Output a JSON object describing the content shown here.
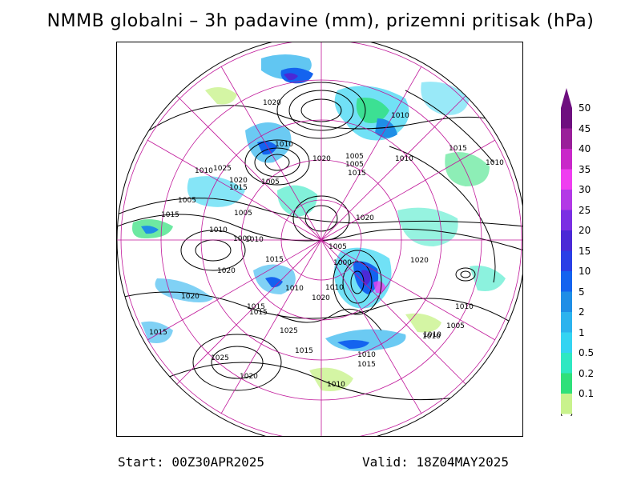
{
  "title": "NMMB globalni – 3h padavine (mm), prizemni pritisak (hPa)",
  "footer": {
    "start": "Start: 00Z30APR2025",
    "valid": "Valid: 18Z04MAY2025"
  },
  "legend": {
    "levels": [
      {
        "label": "50",
        "color": "#6e0f7f"
      },
      {
        "label": "45",
        "color": "#9a1f9a"
      },
      {
        "label": "40",
        "color": "#c928c9"
      },
      {
        "label": "35",
        "color": "#ef3ef0"
      },
      {
        "label": "30",
        "color": "#b339e6"
      },
      {
        "label": "25",
        "color": "#7b2fe3"
      },
      {
        "label": "20",
        "color": "#4b29d6"
      },
      {
        "label": "15",
        "color": "#2a3fe6"
      },
      {
        "label": "10",
        "color": "#1463ef"
      },
      {
        "label": "5",
        "color": "#1f8ee6"
      },
      {
        "label": "2",
        "color": "#2cb3ee"
      },
      {
        "label": "1",
        "color": "#34d4f2"
      },
      {
        "label": "0.5",
        "color": "#2ee8c2"
      },
      {
        "label": "0.2",
        "color": "#2fe07a"
      },
      {
        "label": "0.1",
        "color": "#c9f28d"
      }
    ]
  },
  "isobar_labels": [
    "1020",
    "1010",
    "1010",
    "1005",
    "1020",
    "1005",
    "1015",
    "1010",
    "1015",
    "1010",
    "1025",
    "1010",
    "1020",
    "1005",
    "1015",
    "1005",
    "1020",
    "1015",
    "1010",
    "1005",
    "1010",
    "1000",
    "1005",
    "1020",
    "1015",
    "1000",
    "1020",
    "1015",
    "1010",
    "1020",
    "1010",
    "1010",
    "1020",
    "1015",
    "1025",
    "1015",
    "1010",
    "1005",
    "1010",
    "1015",
    "1025",
    "1020",
    "1010",
    "1015",
    "1010"
  ]
}
